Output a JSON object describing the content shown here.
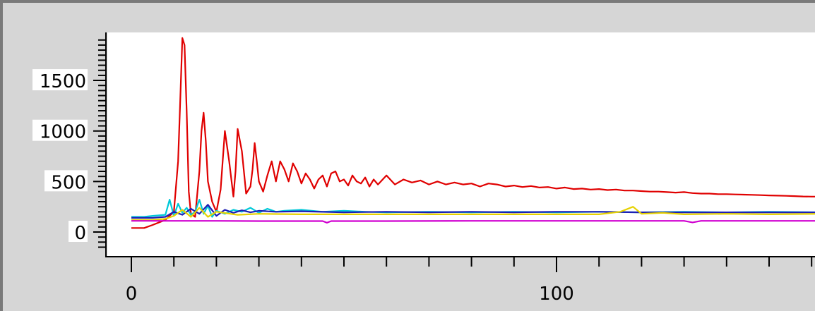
{
  "chart_data": {
    "type": "line",
    "title": "",
    "xlabel": "",
    "ylabel": "",
    "xlim": [
      -6,
      162
    ],
    "ylim": [
      -230,
      1930
    ],
    "grid": false,
    "legend": "none",
    "x_ticks": [
      0,
      100
    ],
    "x_tick_labels": [
      "0",
      "100"
    ],
    "y_ticks": [
      0,
      500,
      1000,
      1500
    ],
    "y_tick_labels": [
      "0",
      "500",
      "1000",
      "1500"
    ],
    "series": [
      {
        "color": "#e00000",
        "x": [
          0,
          3,
          5,
          8,
          10,
          11,
          11.5,
          12,
          12.5,
          13,
          13.5,
          14,
          15,
          16,
          16.5,
          17,
          17.5,
          18,
          19,
          20,
          21,
          22,
          23,
          24,
          24.5,
          25,
          26,
          27,
          28,
          28.5,
          29,
          29.5,
          30,
          31,
          32,
          33,
          34,
          35,
          36,
          37,
          38,
          39,
          40,
          41,
          42,
          43,
          44,
          45,
          46,
          47,
          48,
          49,
          50,
          51,
          52,
          53,
          54,
          55,
          56,
          57,
          58,
          60,
          62,
          64,
          66,
          68,
          70,
          72,
          74,
          76,
          78,
          80,
          82,
          84,
          86,
          88,
          90,
          92,
          94,
          96,
          98,
          100,
          102,
          104,
          106,
          108,
          110,
          112,
          114,
          116,
          118,
          120,
          122,
          124,
          126,
          128,
          130,
          132,
          134,
          136,
          138,
          140,
          142,
          144,
          146,
          148,
          150,
          152,
          154,
          156,
          158,
          160,
          162
        ],
        "y": [
          40,
          40,
          70,
          120,
          200,
          700,
          1300,
          1920,
          1850,
          1200,
          400,
          180,
          150,
          600,
          1000,
          1180,
          900,
          500,
          300,
          200,
          420,
          1000,
          700,
          350,
          600,
          1020,
          800,
          380,
          450,
          620,
          880,
          700,
          500,
          400,
          560,
          700,
          500,
          700,
          620,
          500,
          680,
          600,
          480,
          580,
          520,
          430,
          520,
          560,
          450,
          580,
          600,
          500,
          520,
          460,
          560,
          500,
          480,
          540,
          450,
          520,
          470,
          560,
          470,
          520,
          490,
          510,
          470,
          500,
          470,
          490,
          470,
          480,
          450,
          480,
          470,
          450,
          460,
          445,
          455,
          440,
          445,
          430,
          440,
          425,
          430,
          420,
          425,
          415,
          420,
          410,
          410,
          405,
          400,
          400,
          395,
          390,
          395,
          385,
          380,
          380,
          375,
          375,
          372,
          370,
          368,
          365,
          362,
          360,
          358,
          355,
          352,
          350,
          350
        ]
      },
      {
        "color": "#00c8d8",
        "x": [
          0,
          3,
          5,
          8,
          9,
          10,
          11,
          12,
          13,
          14,
          15,
          16,
          17,
          18,
          19,
          20,
          22,
          24,
          26,
          28,
          30,
          32,
          34,
          36,
          40,
          45,
          50,
          55,
          60,
          70,
          80,
          90,
          100,
          110,
          120,
          130,
          140,
          150,
          162
        ],
        "y": [
          150,
          150,
          160,
          170,
          320,
          160,
          280,
          190,
          240,
          170,
          200,
          320,
          180,
          260,
          150,
          210,
          180,
          220,
          200,
          240,
          190,
          230,
          200,
          210,
          220,
          200,
          210,
          200,
          195,
          200,
          195,
          200,
          195,
          200,
          195,
          200,
          195,
          200,
          195
        ]
      },
      {
        "color": "#1e1eb4",
        "x": [
          0,
          5,
          8,
          10,
          12,
          14,
          16,
          18,
          20,
          22,
          24,
          26,
          28,
          30,
          34,
          40,
          50,
          60,
          70,
          80,
          90,
          100,
          110,
          120,
          130,
          140,
          150,
          162
        ],
        "y": [
          140,
          140,
          150,
          200,
          170,
          230,
          180,
          270,
          160,
          220,
          190,
          215,
          195,
          210,
          200,
          205,
          195,
          200,
          195,
          200,
          195,
          200,
          200,
          195,
          195,
          195,
          195,
          195
        ]
      },
      {
        "color": "#e6d200",
        "x": [
          0,
          5,
          8,
          10,
          12,
          14,
          16,
          18,
          20,
          25,
          30,
          40,
          60,
          80,
          110,
          115,
          118,
          120,
          125,
          130,
          140,
          150,
          162
        ],
        "y": [
          120,
          120,
          130,
          160,
          220,
          150,
          240,
          150,
          200,
          170,
          180,
          175,
          175,
          175,
          175,
          200,
          250,
          180,
          190,
          175,
          180,
          175,
          180
        ]
      },
      {
        "color": "#d000d0",
        "x": [
          0,
          10,
          20,
          30,
          40,
          45,
          46,
          47,
          60,
          80,
          100,
          130,
          132,
          134,
          162
        ],
        "y": [
          110,
          110,
          110,
          108,
          108,
          108,
          92,
          108,
          108,
          110,
          110,
          110,
          95,
          110,
          110
        ]
      }
    ]
  }
}
